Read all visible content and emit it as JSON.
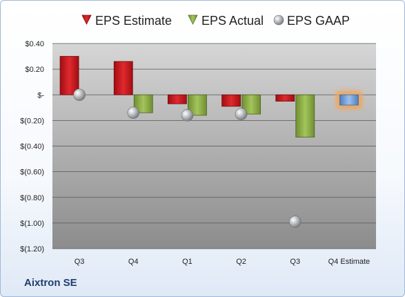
{
  "company": "Aixtron SE",
  "chart_data": {
    "type": "bar",
    "categories": [
      "Q3",
      "Q4",
      "Q1",
      "Q2",
      "Q3",
      "Q4 Estimate"
    ],
    "y_tick_labels": [
      "$0.40",
      "$0.20",
      "$-",
      "$(0.20)",
      "$(0.40)",
      "$(0.60)",
      "$(0.80)",
      "$(1.00)",
      "$(1.20)"
    ],
    "ylim": [
      -1.2,
      0.4
    ],
    "grid": true,
    "legend_position": "top",
    "series": [
      {
        "name": "EPS Estimate",
        "color": "#c0171d",
        "values": [
          0.3,
          0.26,
          -0.07,
          -0.09,
          -0.05,
          null
        ]
      },
      {
        "name": "EPS Actual",
        "color": "#8fb04a",
        "values": [
          null,
          -0.14,
          -0.16,
          -0.15,
          -0.33,
          null
        ]
      },
      {
        "name": "EPS GAAP",
        "color": "#b0b4b8",
        "values": [
          0.0,
          -0.14,
          -0.16,
          -0.15,
          -0.99,
          null
        ]
      }
    ],
    "q4_estimate": {
      "value": -0.08,
      "color": "#6f9fd8",
      "glow": "#f4a455"
    }
  }
}
